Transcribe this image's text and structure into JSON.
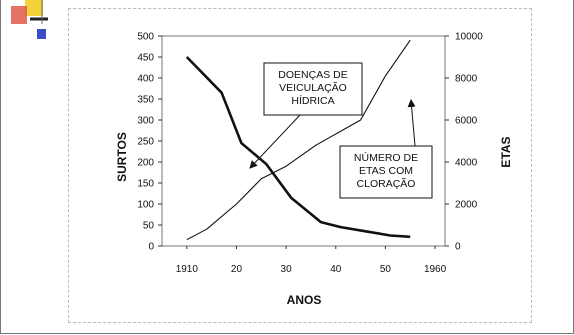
{
  "chart_data": {
    "type": "line",
    "xlabel": "ANOS",
    "ylabel_left": "SURTOS",
    "ylabel_right": "ETAS",
    "x_ticks": [
      "1910",
      "20",
      "30",
      "40",
      "50",
      "1960"
    ],
    "x_tick_values": [
      1910,
      1920,
      1930,
      1940,
      1950,
      1960
    ],
    "xlim": [
      1905,
      1962
    ],
    "ylim_left": [
      0,
      500
    ],
    "ylim_right": [
      0,
      10000
    ],
    "y_ticks_left": [
      0,
      50,
      100,
      150,
      200,
      250,
      300,
      350,
      400,
      450,
      500
    ],
    "y_ticks_right": [
      0,
      2000,
      4000,
      6000,
      8000,
      10000
    ],
    "grid": false,
    "series": [
      {
        "name": "DOENÇAS DE VEICULAÇÃO HÍDRICA",
        "axis": "left",
        "x": [
          1910,
          1917,
          1921,
          1926,
          1931,
          1937,
          1941,
          1946,
          1951,
          1955
        ],
        "values": [
          450,
          365,
          245,
          195,
          115,
          57,
          45,
          35,
          25,
          22
        ]
      },
      {
        "name": "NÚMERO DE ETAS COM CLORAÇÃO",
        "axis": "right",
        "x": [
          1910,
          1914,
          1920,
          1925,
          1930,
          1936,
          1945,
          1950,
          1955
        ],
        "values": [
          300,
          800,
          2000,
          3200,
          3800,
          4800,
          6000,
          8100,
          9800
        ]
      }
    ],
    "annotations": [
      {
        "lines": [
          "DOENÇAS DE",
          "VEICULAÇÃO",
          "HÍDRICA"
        ]
      },
      {
        "lines": [
          "NÚMERO DE",
          "ETAS COM",
          "CLORAÇÃO"
        ]
      }
    ]
  }
}
